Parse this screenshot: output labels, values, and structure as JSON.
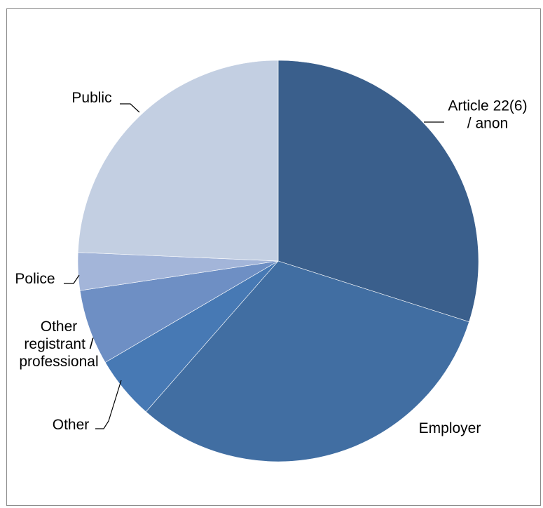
{
  "chart_data": {
    "type": "pie",
    "title": "",
    "start_angle_deg": 0,
    "direction": "clockwise",
    "slices": [
      {
        "label": "Article 22(6)\n/ anon",
        "value": 30.5,
        "color": "#3a5f8c"
      },
      {
        "label": "Employer",
        "value": 32.2,
        "color": "#416ea2"
      },
      {
        "label": "Other",
        "value": 5.2,
        "color": "#4779b4"
      },
      {
        "label": "Other\nregistrant /\nprofessional",
        "value": 6.2,
        "color": "#6e8fc4"
      },
      {
        "label": "Police",
        "value": 3.1,
        "color": "#a3b5d9"
      },
      {
        "label": "Public",
        "value": 24.8,
        "color": "#c3cfe2"
      }
    ]
  }
}
